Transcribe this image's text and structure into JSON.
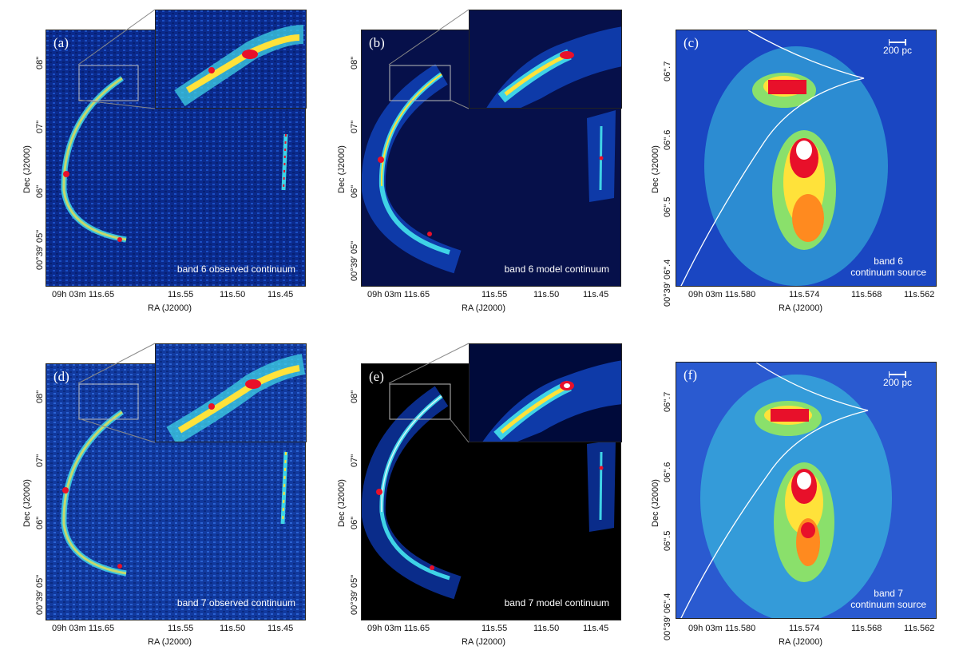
{
  "panels": {
    "a": {
      "label": "(a)",
      "caption": "band 6 observed continuum"
    },
    "b": {
      "label": "(b)",
      "caption": "band 6 model continuum"
    },
    "c": {
      "label": "(c)",
      "caption_line1": "band 6",
      "caption_line2": "continuum source",
      "scale": "200 pc"
    },
    "d": {
      "label": "(d)",
      "caption": "band 7 observed continuum"
    },
    "e": {
      "label": "(e)",
      "caption": "band 7 model continuum"
    },
    "f": {
      "label": "(f)",
      "caption_line1": "band 7",
      "caption_line2": "continuum source",
      "scale": "200 pc"
    }
  },
  "axes": {
    "ylabel": "Dec (J2000)",
    "xlabel": "RA (J2000)",
    "wide_yticks": [
      "08\"",
      "07\"",
      "06\"",
      "00°39′ 05\""
    ],
    "wide_xticks": [
      "09h 03m 11s.65",
      "11s.55",
      "11s.50",
      "11s.45"
    ],
    "zoom_yticks": [
      "06\".7",
      "06\".6",
      "06\".5",
      "00°39′ 06\".4"
    ],
    "zoom_xticks": [
      "09h 03m 11s.580",
      "11s.574",
      "11s.568",
      "11s.562"
    ]
  },
  "colors": {
    "background_noise": "#0b2a8c",
    "model_background": "#06104a",
    "model7_background": "#000000",
    "cyan": "#3fd3e6",
    "yellow": "#ffe23a",
    "red": "#e8102a",
    "white_core": "#ffffff"
  }
}
